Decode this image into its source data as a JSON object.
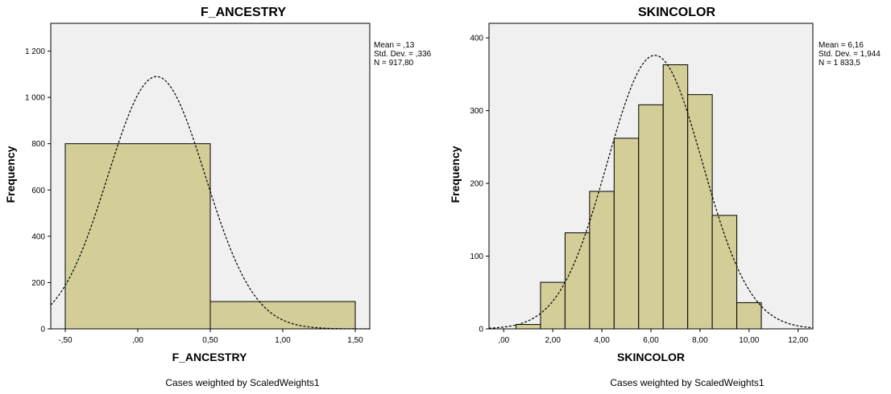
{
  "chart_data": [
    {
      "type": "bar",
      "title": "F_ANCESTRY",
      "xlabel": "F_ANCESTRY",
      "ylabel": "Frequency",
      "xlim": [
        -0.6,
        1.6
      ],
      "ylim": [
        0,
        1320
      ],
      "x_ticks": [
        "-,50",
        ",00",
        "0,50",
        "1,00",
        "1,50"
      ],
      "x_tick_values": [
        -0.5,
        0,
        0.5,
        1.0,
        1.5
      ],
      "y_ticks": [
        "0",
        "200",
        "400",
        "600",
        "800",
        "1 000",
        "1 200"
      ],
      "y_tick_values": [
        0,
        200,
        400,
        600,
        800,
        1000,
        1200
      ],
      "bins": [
        {
          "from": -0.5,
          "to": 0.5,
          "value": 800
        },
        {
          "from": 0.5,
          "to": 1.5,
          "value": 118
        }
      ],
      "normal_curve": {
        "mean": 0.13,
        "sd": 0.336,
        "peak": 1090
      },
      "stats": [
        "Mean = ,13",
        "Std. Dev. = ,336",
        "N = 917,80"
      ],
      "footnote": "Cases weighted by ScaledWeights1",
      "grid": false
    },
    {
      "type": "bar",
      "title": "SKINCOLOR",
      "xlabel": "SKINCOLOR",
      "ylabel": "Frequency",
      "xlim": [
        -0.6,
        12.6
      ],
      "ylim": [
        0,
        420
      ],
      "x_ticks": [
        ",00",
        "2,00",
        "4,00",
        "6,00",
        "8,00",
        "10,00",
        "12,00"
      ],
      "x_tick_values": [
        0,
        2,
        4,
        6,
        8,
        10,
        12
      ],
      "y_ticks": [
        "0",
        "100",
        "200",
        "300",
        "400"
      ],
      "y_tick_values": [
        0,
        100,
        200,
        300,
        400
      ],
      "bins": [
        {
          "from": 0.5,
          "to": 1.5,
          "value": 6
        },
        {
          "from": 1.5,
          "to": 2.5,
          "value": 64
        },
        {
          "from": 2.5,
          "to": 3.5,
          "value": 132
        },
        {
          "from": 3.5,
          "to": 4.5,
          "value": 189
        },
        {
          "from": 4.5,
          "to": 5.5,
          "value": 262
        },
        {
          "from": 5.5,
          "to": 6.5,
          "value": 308
        },
        {
          "from": 6.5,
          "to": 7.5,
          "value": 363
        },
        {
          "from": 7.5,
          "to": 8.5,
          "value": 322
        },
        {
          "from": 8.5,
          "to": 9.5,
          "value": 156
        },
        {
          "from": 9.5,
          "to": 10.5,
          "value": 36
        }
      ],
      "normal_curve": {
        "mean": 6.16,
        "sd": 1.944,
        "peak": 376
      },
      "stats": [
        "Mean = 6,16",
        "Std. Dev. = 1,944",
        "N = 1 833,5"
      ],
      "footnote": "Cases weighted by ScaledWeights1",
      "grid": false
    }
  ]
}
